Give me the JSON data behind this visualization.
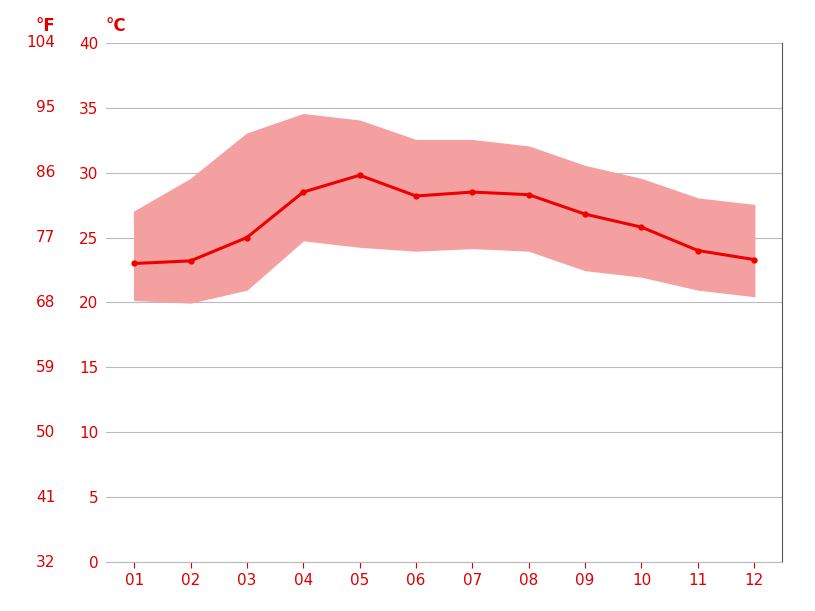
{
  "months": [
    1,
    2,
    3,
    4,
    5,
    6,
    7,
    8,
    9,
    10,
    11,
    12
  ],
  "month_labels": [
    "01",
    "02",
    "03",
    "04",
    "05",
    "06",
    "07",
    "08",
    "09",
    "10",
    "11",
    "12"
  ],
  "avg_temp": [
    23.0,
    23.2,
    25.0,
    28.5,
    29.8,
    28.2,
    28.5,
    28.3,
    26.8,
    25.8,
    24.0,
    23.3
  ],
  "temp_max": [
    27.0,
    29.5,
    33.0,
    34.5,
    34.0,
    32.5,
    32.5,
    32.0,
    30.5,
    29.5,
    28.0,
    27.5
  ],
  "temp_min": [
    20.2,
    20.0,
    21.0,
    24.8,
    24.3,
    24.0,
    24.2,
    24.0,
    22.5,
    22.0,
    21.0,
    20.5
  ],
  "ylim_celsius": [
    0,
    40
  ],
  "yticks_celsius": [
    0,
    5,
    10,
    15,
    20,
    25,
    30,
    35,
    40
  ],
  "yticks_fahrenheit": [
    32,
    41,
    50,
    59,
    68,
    77,
    86,
    95,
    104
  ],
  "ylabel_left": "°F",
  "ylabel_right": "°C",
  "line_color": "#ee0000",
  "band_color": "#f5a0a0",
  "grid_color": "#bbbbbb",
  "background_color": "#ffffff",
  "tick_label_color": "#dd0000",
  "figsize": [
    8.15,
    6.11
  ],
  "dpi": 100
}
